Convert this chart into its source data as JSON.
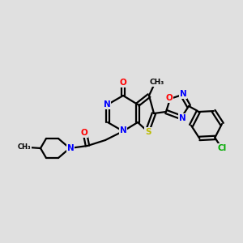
{
  "background_color": "#e0e0e0",
  "atom_colors": {
    "N": "#0000ff",
    "O": "#ff0000",
    "S": "#bbbb00",
    "Cl": "#00aa00",
    "C": "#000000"
  },
  "figsize": [
    3.0,
    3.0
  ],
  "dpi": 100
}
